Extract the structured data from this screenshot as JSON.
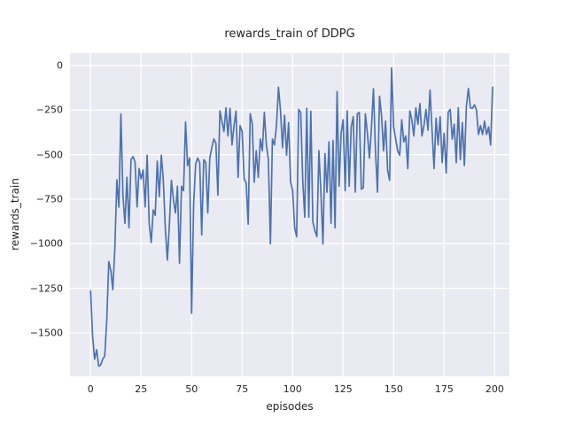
{
  "figure": {
    "title": "rewards_train of DDPG",
    "xlabel": "episodes",
    "ylabel": "rewards_train",
    "colors": {
      "line": "#4c72b0",
      "axes_background": "#eaeaf2",
      "grid": "#ffffff",
      "text": "#262626",
      "figure_background": "#ffffff"
    }
  },
  "chart_data": {
    "type": "line",
    "title": "rewards_train of DDPG",
    "xlabel": "episodes",
    "ylabel": "rewards_train",
    "grid": true,
    "legend": false,
    "xlim": [
      -10.2,
      207.3
    ],
    "ylim": [
      -1744,
      70
    ],
    "x_ticks": [
      {
        "value": 0,
        "label": "0"
      },
      {
        "value": 25,
        "label": "25"
      },
      {
        "value": 50,
        "label": "50"
      },
      {
        "value": 75,
        "label": "75"
      },
      {
        "value": 100,
        "label": "100"
      },
      {
        "value": 125,
        "label": "125"
      },
      {
        "value": 150,
        "label": "150"
      },
      {
        "value": 175,
        "label": "175"
      },
      {
        "value": 200,
        "label": "200"
      }
    ],
    "y_ticks": [
      {
        "value": 0,
        "label": "0"
      },
      {
        "value": -250,
        "label": "−250"
      },
      {
        "value": -500,
        "label": "−500"
      },
      {
        "value": -750,
        "label": "−750"
      },
      {
        "value": -1000,
        "label": "−1000"
      },
      {
        "value": -1250,
        "label": "−1250"
      },
      {
        "value": -1500,
        "label": "−1500"
      }
    ],
    "series": [
      {
        "name": "rewards_train",
        "color": "#4c72b0",
        "x_start": 0,
        "x_step": 1,
        "values": [
          -1265,
          -1520,
          -1648,
          -1595,
          -1687,
          -1680,
          -1648,
          -1630,
          -1430,
          -1100,
          -1150,
          -1258,
          -1026,
          -641,
          -794,
          -271,
          -727,
          -885,
          -627,
          -910,
          -528,
          -511,
          -541,
          -793,
          -578,
          -636,
          -586,
          -793,
          -503,
          -885,
          -993,
          -810,
          -840,
          -536,
          -735,
          -503,
          -644,
          -918,
          -1092,
          -890,
          -644,
          -752,
          -827,
          -677,
          -1109,
          -677,
          -702,
          -316,
          -561,
          -519,
          -1390,
          -777,
          -553,
          -519,
          -544,
          -950,
          -528,
          -544,
          -827,
          -519,
          -461,
          -412,
          -435,
          -727,
          -254,
          -312,
          -370,
          -237,
          -395,
          -240,
          -445,
          -337,
          -255,
          -627,
          -337,
          -370,
          -635,
          -660,
          -890,
          -270,
          -325,
          -654,
          -478,
          -627,
          -412,
          -478,
          -262,
          -445,
          -528,
          -1000,
          -412,
          -445,
          -337,
          -121,
          -254,
          -461,
          -279,
          -503,
          -320,
          -652,
          -702,
          -910,
          -960,
          -246,
          -262,
          -644,
          -851,
          -240,
          -851,
          -256,
          -876,
          -926,
          -960,
          -478,
          -711,
          -1001,
          -494,
          -711,
          -428,
          -885,
          -420,
          -910,
          -146,
          -677,
          -378,
          -304,
          -702,
          -254,
          -677,
          -345,
          -287,
          -710,
          -271,
          -263,
          -694,
          -685,
          -271,
          -378,
          -519,
          -353,
          -130,
          -478,
          -710,
          -172,
          -279,
          -478,
          -312,
          -586,
          -644,
          -13,
          -345,
          -412,
          -478,
          -503,
          -304,
          -428,
          -395,
          -578,
          -254,
          -304,
          -395,
          -237,
          -329,
          -213,
          -395,
          -337,
          -246,
          -362,
          -138,
          -362,
          -578,
          -295,
          -445,
          -287,
          -544,
          -380,
          -603,
          -262,
          -246,
          -412,
          -329,
          -544,
          -237,
          -528,
          -320,
          -561,
          -229,
          -129,
          -237,
          -240,
          -220,
          -250,
          -387,
          -337,
          -387,
          -312,
          -387,
          -345,
          -445,
          -121
        ]
      }
    ]
  }
}
